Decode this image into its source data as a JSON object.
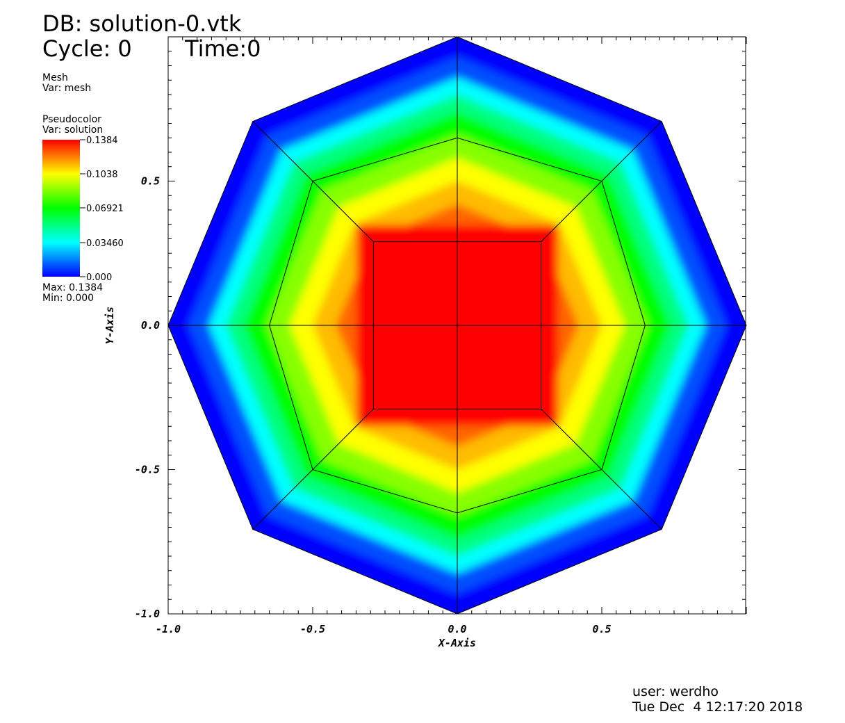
{
  "header": {
    "db_line": "DB: solution-0.vtk",
    "cycle_line": "Cycle: 0",
    "time_line": "Time:0"
  },
  "legend_mesh": {
    "plot_name": "Mesh",
    "var_label": "Var: mesh"
  },
  "legend_pseudocolor": {
    "plot_name": "Pseudocolor",
    "var_label": "Var: solution",
    "max_label": "Max:  0.1384",
    "min_label": "Min:  0.000",
    "colorbar_ticks": [
      "0.1384",
      "0.1038",
      "0.06921",
      "0.03460",
      "0.000"
    ],
    "colorbar_stops": [
      "#0000ff",
      "#00ffff",
      "#00ff00",
      "#ffff00",
      "#ff0000"
    ]
  },
  "footer": {
    "user_line": "user: werdho",
    "date_line": "Tue Dec  4 12:17:20 2018"
  },
  "chart_data": {
    "type": "heatmap",
    "title": "",
    "xlabel": "X-Axis",
    "ylabel": "Y-Axis",
    "xlim": [
      -1.0,
      1.0
    ],
    "ylim": [
      -1.0,
      1.0
    ],
    "x_ticks": [
      "-1.0",
      "-0.5",
      "0.0",
      "0.5"
    ],
    "y_ticks": [
      "-1.0",
      "-0.5",
      "0.0",
      "0.5"
    ],
    "colormap": "hot_desaturated",
    "value_range": [
      0.0,
      0.1384
    ],
    "mesh": {
      "outer_octagon": [
        [
          1.0,
          0.0
        ],
        [
          0.7071,
          0.7071
        ],
        [
          0.0,
          1.0
        ],
        [
          -0.7071,
          0.7071
        ],
        [
          -1.0,
          0.0
        ],
        [
          -0.7071,
          -0.7071
        ],
        [
          0.0,
          -1.0
        ],
        [
          0.7071,
          -0.7071
        ]
      ],
      "inner_octagon": [
        [
          0.65,
          0.0
        ],
        [
          0.5,
          0.5
        ],
        [
          0.0,
          0.65
        ],
        [
          -0.5,
          0.5
        ],
        [
          -0.65,
          0.0
        ],
        [
          -0.5,
          -0.5
        ],
        [
          0.0,
          -0.65
        ],
        [
          0.5,
          -0.5
        ]
      ],
      "inner_square": [
        [
          0.29,
          0.29
        ],
        [
          -0.29,
          0.29
        ],
        [
          -0.29,
          -0.29
        ],
        [
          0.29,
          -0.29
        ]
      ],
      "cross_lines": true
    }
  }
}
